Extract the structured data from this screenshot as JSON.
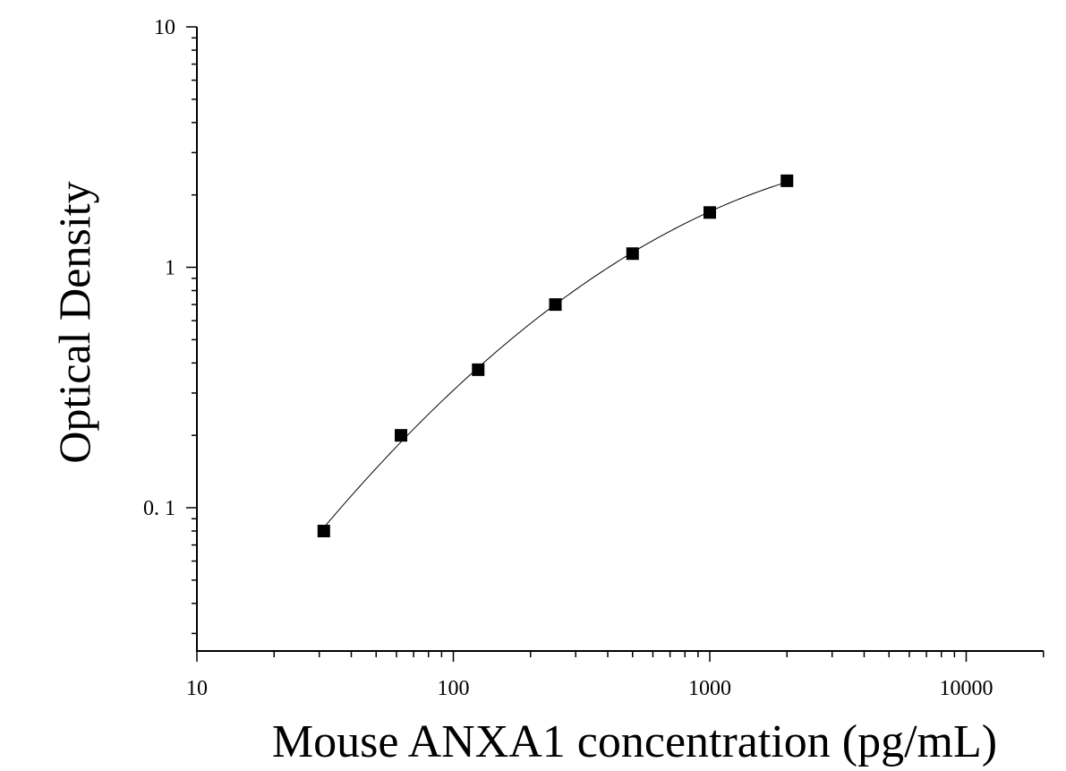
{
  "chart_data": {
    "type": "scatter",
    "title": "",
    "xlabel": "Mouse ANXA1 concentration (pg/mL)",
    "ylabel": "Optical Density",
    "x_scale": "log",
    "y_scale": "log",
    "xlim": [
      10,
      20000
    ],
    "ylim": [
      0.03,
      10
    ],
    "x_ticks": [
      10,
      100,
      1000,
      10000
    ],
    "x_tick_labels": [
      "10",
      "100",
      "1000",
      "10000"
    ],
    "y_ticks": [
      0.1,
      1,
      10
    ],
    "y_tick_labels": [
      "0. 1",
      "1",
      "10"
    ],
    "grid": false,
    "legend": "none",
    "marker": "square",
    "marker_color": "#000000",
    "series": [
      {
        "x": [
          31.25,
          62.5,
          125,
          250,
          500,
          1000,
          2000
        ],
        "y": [
          0.08,
          0.2,
          0.375,
          0.7,
          1.14,
          1.69,
          2.29
        ],
        "fit_curve": true
      }
    ]
  }
}
